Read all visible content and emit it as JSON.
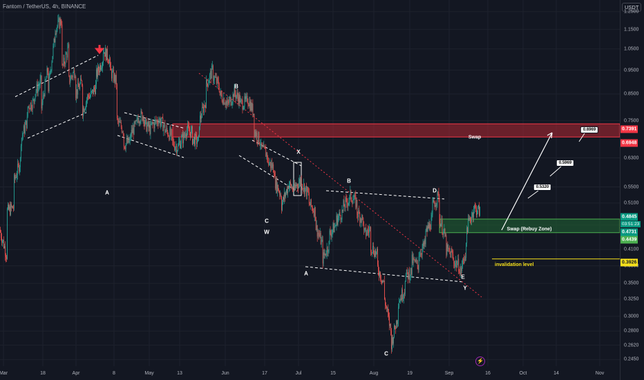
{
  "header": {
    "symbol": "Fantom / TetherUS, 4h, BINANCE",
    "currency": "USDT"
  },
  "colors": {
    "background": "#131722",
    "up": "#26a69a",
    "down": "#ef5350",
    "supply_zone": "#b22833",
    "demand_zone": "#1e5631",
    "invalidation": "#f7e11b"
  },
  "chart_data": {
    "type": "candlestick",
    "y_scale": "log",
    "ylim": [
      0.2375,
      1.32
    ],
    "y_ticks": [
      "1.2500",
      "1.1500",
      "1.0500",
      "0.9500",
      "0.8500",
      "0.7500",
      "0.6300",
      "0.5500",
      "0.5100",
      "0.4600",
      "0.4100",
      "0.3800",
      "0.3500",
      "0.3250",
      "0.3000",
      "0.2800",
      "0.2620",
      "0.2450"
    ],
    "x_ticks": [
      "Mar",
      "18",
      "Apr",
      "8",
      "May",
      "13",
      "Jun",
      "17",
      "Jul",
      "15",
      "Aug",
      "19",
      "Sep",
      "16",
      "Oct",
      "14",
      "Nov"
    ],
    "price_path": [
      [
        0.45,
        0.4
      ],
      [
        0.49,
        0.5
      ],
      [
        0.56,
        0.62
      ],
      [
        0.68,
        0.75
      ],
      [
        0.8,
        0.82
      ],
      [
        0.85,
        0.9
      ],
      [
        0.78,
        0.95
      ],
      [
        0.85,
        1.1
      ],
      [
        1.15,
        1.2
      ],
      [
        0.95,
        1.05
      ],
      [
        0.9,
        0.95
      ],
      [
        0.85,
        0.9
      ],
      [
        0.78,
        0.85
      ],
      [
        0.83,
        0.88
      ],
      [
        0.92,
        1.0
      ],
      [
        1.05,
        1.0
      ],
      [
        0.95,
        0.9
      ],
      [
        0.75,
        0.72
      ],
      [
        0.67,
        0.68
      ],
      [
        0.7,
        0.74
      ],
      [
        0.76,
        0.77
      ],
      [
        0.74,
        0.72
      ],
      [
        0.73,
        0.75
      ],
      [
        0.76,
        0.73
      ],
      [
        0.72,
        0.7
      ],
      [
        0.68,
        0.66
      ],
      [
        0.67,
        0.7
      ],
      [
        0.72,
        0.71
      ],
      [
        0.69,
        0.68
      ],
      [
        0.74,
        0.82
      ],
      [
        0.88,
        0.95
      ],
      [
        0.93,
        0.88
      ],
      [
        0.85,
        0.82
      ],
      [
        0.8,
        0.84
      ],
      [
        0.86,
        0.83
      ],
      [
        0.81,
        0.82
      ],
      [
        0.84,
        0.78
      ],
      [
        0.72,
        0.68
      ],
      [
        0.66,
        0.64
      ],
      [
        0.62,
        0.6
      ],
      [
        0.57,
        0.53
      ],
      [
        0.5,
        0.55
      ],
      [
        0.56,
        0.54
      ],
      [
        0.55,
        0.57
      ],
      [
        0.56,
        0.53
      ],
      [
        0.51,
        0.49
      ],
      [
        0.46,
        0.42
      ],
      [
        0.39,
        0.42
      ],
      [
        0.44,
        0.46
      ],
      [
        0.47,
        0.49
      ],
      [
        0.5,
        0.52
      ],
      [
        0.53,
        0.51
      ],
      [
        0.49,
        0.47
      ],
      [
        0.44,
        0.45
      ],
      [
        0.42,
        0.4
      ],
      [
        0.38,
        0.35
      ],
      [
        0.33,
        0.28
      ],
      [
        0.26,
        0.3
      ],
      [
        0.32,
        0.34
      ],
      [
        0.36,
        0.37
      ],
      [
        0.39,
        0.38
      ],
      [
        0.4,
        0.42
      ],
      [
        0.44,
        0.47
      ],
      [
        0.5,
        0.53
      ],
      [
        0.48,
        0.43
      ],
      [
        0.41,
        0.4
      ],
      [
        0.39,
        0.38
      ],
      [
        0.36,
        0.41
      ],
      [
        0.45,
        0.49
      ],
      [
        0.5,
        0.49
      ]
    ],
    "annotations": [
      {
        "label": "A",
        "price": 0.535
      },
      {
        "label": "B",
        "price": 0.88
      },
      {
        "label": "C",
        "price": 0.468
      },
      {
        "label": "W",
        "price": 0.445
      },
      {
        "label": "X",
        "price": 0.648
      },
      {
        "label": "A",
        "price": 0.367
      },
      {
        "label": "B",
        "price": 0.566
      },
      {
        "label": "C",
        "price": 0.252
      },
      {
        "label": "D",
        "price": 0.54
      },
      {
        "label": "E",
        "price": 0.361
      },
      {
        "label": "Y",
        "price": 0.342
      }
    ],
    "zones": [
      {
        "label": "Swap",
        "top": 0.7391,
        "bottom": 0.6948,
        "kind": "supply"
      },
      {
        "label": "Swap (Rebuy Zone)",
        "top": 0.4731,
        "bottom": 0.4439,
        "kind": "demand"
      }
    ],
    "targets": [
      "0.5320",
      "0.5969",
      "0.6969"
    ],
    "invalidation": {
      "label": "invalidation level",
      "price": "0.3926"
    },
    "price_labels": {
      "supply_top": "0.7391",
      "supply_bottom": "0.6948",
      "current": "0.4845",
      "countdown": "03:51:23",
      "demand_top": "0.4731",
      "demand_bottom": "0.4439",
      "invalidation": "0.3926"
    }
  }
}
